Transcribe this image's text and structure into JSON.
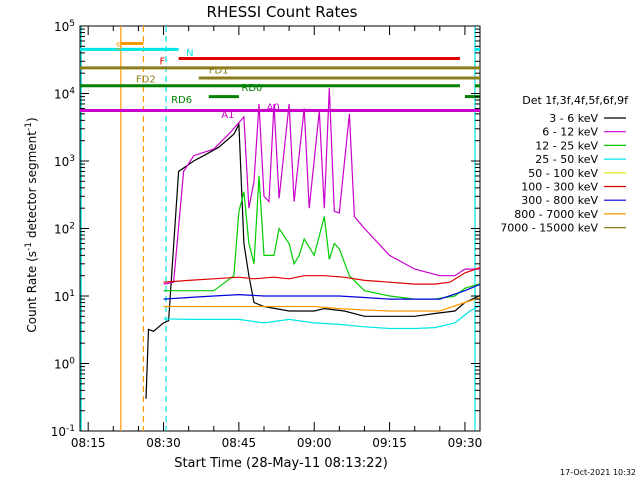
{
  "chart_data": {
    "type": "line",
    "title": "RHESSI Count Rates",
    "xlabel": "Start Time (28-May-11 08:13:22)",
    "ylabel": "Count Rate (s",
    "ylabel_sup": "-1",
    "ylabel_mid": " detector segment",
    "ylabel_tail": ")",
    "footer": "17-Oct-2021 10:32",
    "x_axis": {
      "unit": "minutes after 08:00 UT",
      "range": [
        13.37,
        93.0
      ],
      "ticks": [
        {
          "v": 15,
          "label": "08:15"
        },
        {
          "v": 30,
          "label": "08:30"
        },
        {
          "v": 45,
          "label": "08:45"
        },
        {
          "v": 60,
          "label": "09:00"
        },
        {
          "v": 75,
          "label": "09:15"
        },
        {
          "v": 90,
          "label": "09:30"
        },
        {
          "v": 105,
          "label": "09:45"
        }
      ]
    },
    "y_axis": {
      "scale": "log",
      "range": [
        0.1,
        100000
      ],
      "ticks": [
        {
          "exp": -1,
          "base": "10",
          "sup": "-1"
        },
        {
          "exp": 0,
          "base": "10",
          "sup": "0"
        },
        {
          "exp": 1,
          "base": "10",
          "sup": "1"
        },
        {
          "exp": 2,
          "base": "10",
          "sup": "2"
        },
        {
          "exp": 3,
          "base": "10",
          "sup": "3"
        },
        {
          "exp": 4,
          "base": "10",
          "sup": "4"
        },
        {
          "exp": 5,
          "base": "10",
          "sup": "5"
        }
      ]
    },
    "legend": {
      "placement": "right",
      "title": "Det 1f,3f,4f,5f,6f,9f",
      "entries": [
        {
          "label": "3 - 6 keV",
          "color": "#000000"
        },
        {
          "label": "6 - 12 keV",
          "color": "#cc00cc"
        },
        {
          "label": "12 - 25 keV",
          "color": "#00cc00"
        },
        {
          "label": "25 - 50 keV",
          "color": "#00e5e5"
        },
        {
          "label": "50 - 100 keV",
          "color": "#e5e500"
        },
        {
          "label": "100 - 300 keV",
          "color": "#e00000"
        },
        {
          "label": "300 - 800 keV",
          "color": "#0000dd"
        },
        {
          "label": "800 - 7000 keV",
          "color": "#ff9900"
        },
        {
          "label": "7000 - 15000 keV",
          "color": "#8b7d1a"
        }
      ]
    },
    "series": [
      {
        "name": "3 - 6 keV",
        "color": "#000000",
        "points": [
          [
            26.5,
            0.3
          ],
          [
            27,
            3.2
          ],
          [
            28,
            3.0
          ],
          [
            30,
            4.0
          ],
          [
            31,
            4.3
          ],
          [
            33,
            700
          ],
          [
            36,
            1000
          ],
          [
            38,
            1200
          ],
          [
            41,
            1600
          ],
          [
            44,
            2500
          ],
          [
            45,
            3500
          ],
          [
            46,
            60
          ],
          [
            47,
            20
          ],
          [
            48,
            8
          ],
          [
            50,
            7
          ],
          [
            55,
            6
          ],
          [
            60,
            6
          ],
          [
            62,
            6.5
          ],
          [
            66,
            6
          ],
          [
            70,
            5
          ],
          [
            75,
            5
          ],
          [
            80,
            5
          ],
          [
            84,
            5.5
          ],
          [
            88,
            6
          ],
          [
            90,
            8
          ],
          [
            94,
            11
          ],
          [
            98,
            14
          ],
          [
            99,
            10
          ],
          [
            100,
            0.5
          ]
        ]
      },
      {
        "name": "6 - 12 keV",
        "color": "#cc00cc",
        "points": [
          [
            30,
            15
          ],
          [
            32,
            16
          ],
          [
            34,
            700
          ],
          [
            36,
            1200
          ],
          [
            40,
            1500
          ],
          [
            43,
            2500
          ],
          [
            46,
            4500
          ],
          [
            47,
            200
          ],
          [
            48,
            500
          ],
          [
            49,
            7000
          ],
          [
            50,
            300
          ],
          [
            51,
            250
          ],
          [
            52,
            7000
          ],
          [
            53,
            280
          ],
          [
            55,
            7000
          ],
          [
            56,
            250
          ],
          [
            58,
            6000
          ],
          [
            59,
            200
          ],
          [
            61,
            5500
          ],
          [
            62,
            200
          ],
          [
            63,
            12000
          ],
          [
            64,
            180
          ],
          [
            65,
            170
          ],
          [
            67,
            5000
          ],
          [
            68,
            150
          ],
          [
            70,
            100
          ],
          [
            75,
            40
          ],
          [
            80,
            25
          ],
          [
            85,
            20
          ],
          [
            88,
            20
          ],
          [
            90,
            25
          ],
          [
            94,
            25
          ],
          [
            98,
            26
          ],
          [
            100,
            5
          ]
        ]
      },
      {
        "name": "12 - 25 keV",
        "color": "#00cc00",
        "points": [
          [
            30,
            12
          ],
          [
            35,
            12
          ],
          [
            40,
            12
          ],
          [
            44,
            20
          ],
          [
            45,
            180
          ],
          [
            46,
            350
          ],
          [
            47,
            60
          ],
          [
            48,
            30
          ],
          [
            49,
            600
          ],
          [
            50,
            40
          ],
          [
            52,
            40
          ],
          [
            53,
            100
          ],
          [
            55,
            60
          ],
          [
            56,
            30
          ],
          [
            57,
            40
          ],
          [
            58,
            70
          ],
          [
            60,
            40
          ],
          [
            62,
            150
          ],
          [
            63,
            35
          ],
          [
            64,
            60
          ],
          [
            65,
            50
          ],
          [
            67,
            20
          ],
          [
            70,
            12
          ],
          [
            75,
            10
          ],
          [
            80,
            9
          ],
          [
            84,
            9
          ],
          [
            88,
            10
          ],
          [
            90,
            13
          ],
          [
            94,
            16
          ],
          [
            98,
            18
          ],
          [
            100,
            5
          ]
        ]
      },
      {
        "name": "25 - 50 keV",
        "color": "#00e5e5",
        "points": [
          [
            30,
            4.6
          ],
          [
            35,
            4.5
          ],
          [
            40,
            4.5
          ],
          [
            45,
            4.5
          ],
          [
            50,
            4.0
          ],
          [
            55,
            4.5
          ],
          [
            60,
            4.0
          ],
          [
            65,
            3.8
          ],
          [
            70,
            3.5
          ],
          [
            75,
            3.3
          ],
          [
            80,
            3.3
          ],
          [
            84,
            3.4
          ],
          [
            88,
            4.0
          ],
          [
            91,
            6
          ],
          [
            94,
            8
          ],
          [
            98,
            9
          ],
          [
            100,
            2
          ]
        ]
      },
      {
        "name": "100 - 300 keV",
        "color": "#e00000",
        "points": [
          [
            30,
            16
          ],
          [
            35,
            17
          ],
          [
            40,
            18
          ],
          [
            45,
            19
          ],
          [
            48,
            18
          ],
          [
            52,
            19
          ],
          [
            55,
            18
          ],
          [
            58,
            20
          ],
          [
            62,
            20
          ],
          [
            66,
            19
          ],
          [
            70,
            17
          ],
          [
            75,
            16
          ],
          [
            80,
            15
          ],
          [
            84,
            15
          ],
          [
            87,
            16
          ],
          [
            90,
            22
          ],
          [
            94,
            28
          ],
          [
            98,
            32
          ],
          [
            100,
            5
          ]
        ]
      },
      {
        "name": "300 - 800 keV",
        "color": "#0000dd",
        "points": [
          [
            30,
            9
          ],
          [
            35,
            9.5
          ],
          [
            40,
            10
          ],
          [
            45,
            10.5
          ],
          [
            50,
            10
          ],
          [
            55,
            10
          ],
          [
            60,
            10
          ],
          [
            65,
            10
          ],
          [
            70,
            9.5
          ],
          [
            75,
            9
          ],
          [
            80,
            9
          ],
          [
            85,
            9
          ],
          [
            90,
            12
          ],
          [
            94,
            16
          ],
          [
            98,
            18
          ],
          [
            100,
            4
          ]
        ]
      },
      {
        "name": "800 - 7000 keV",
        "color": "#ff9900",
        "points": [
          [
            30,
            7
          ],
          [
            35,
            7
          ],
          [
            40,
            7
          ],
          [
            45,
            7
          ],
          [
            50,
            7
          ],
          [
            55,
            7
          ],
          [
            60,
            7
          ],
          [
            65,
            6.5
          ],
          [
            70,
            6.2
          ],
          [
            75,
            6
          ],
          [
            80,
            6
          ],
          [
            85,
            6
          ],
          [
            90,
            8
          ],
          [
            94,
            10
          ],
          [
            98,
            12
          ],
          [
            100,
            3
          ]
        ]
      }
    ],
    "state_bars": [
      {
        "label": "S",
        "color": "#ff9900",
        "label_x": 20.5,
        "label_y": 50000,
        "segments": [
          [
            21.5,
            26
          ]
        ],
        "level": 55000
      },
      {
        "label": "N",
        "color": "#00e5e5",
        "label_x": 34.5,
        "label_y": 40000,
        "segments": [
          [
            13.37,
            33
          ],
          [
            92,
            93
          ]
        ],
        "level": 45000
      },
      {
        "label": "F",
        "color": "#e00000",
        "label_x": 29.2,
        "label_y": 30000,
        "segments": [
          [
            33,
            89
          ]
        ],
        "level": 33000
      },
      {
        "label": "FD1",
        "color": "#8b7d1a",
        "label_x": 39,
        "label_y": 22000,
        "segments": [
          [
            13.37,
            93
          ]
        ],
        "level": 24000
      },
      {
        "label": "FD2",
        "color": "#8b7d1a",
        "label_x": 24.5,
        "label_y": 16000,
        "segments": [
          [
            37,
            93
          ]
        ],
        "level": 17000
      },
      {
        "label": "RD0",
        "color": "#008000",
        "label_x": 45.5,
        "label_y": 12000,
        "segments": [
          [
            13.37,
            89
          ],
          [
            92,
            93
          ]
        ],
        "level": 13000
      },
      {
        "label": "RD6",
        "color": "#008000",
        "label_x": 31.5,
        "label_y": 8000,
        "segments": [
          [
            39,
            45
          ],
          [
            90,
            93
          ]
        ],
        "level": 9000
      },
      {
        "label": "A0",
        "color": "#cc00cc",
        "label_x": 50.5,
        "label_y": 6200,
        "segments": [],
        "level": 6200
      },
      {
        "label": "A1",
        "color": "#cc00cc",
        "label_x": 41.5,
        "label_y": 4800,
        "segments": [
          [
            13.37,
            93
          ]
        ],
        "level": 5600
      }
    ],
    "vertical_lines": [
      {
        "x": 13.6,
        "color": "#00e5e5",
        "style": "solid"
      },
      {
        "x": 21.5,
        "color": "#ff9900",
        "style": "solid"
      },
      {
        "x": 26.0,
        "color": "#ff9900",
        "style": "dashed"
      },
      {
        "x": 30.5,
        "color": "#00e5e5",
        "style": "dashed"
      },
      {
        "x": 92.0,
        "color": "#00e5e5",
        "style": "solid"
      }
    ]
  }
}
